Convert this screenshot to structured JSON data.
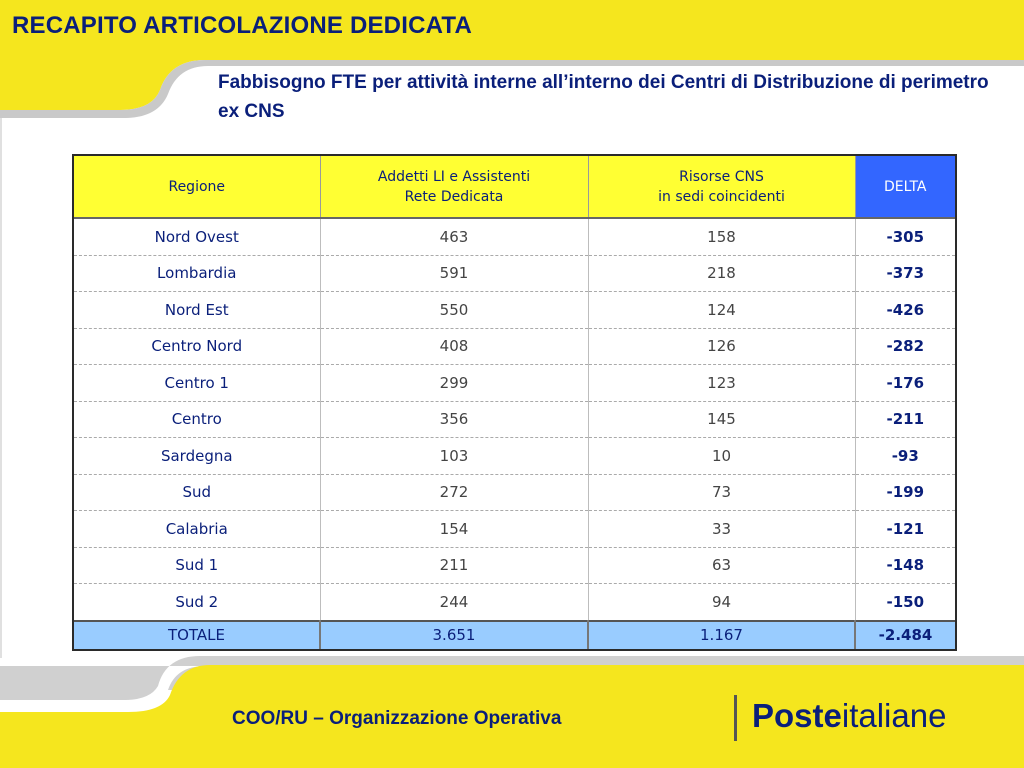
{
  "slide": {
    "title": "RECAPITO ARTICOLAZIONE DEDICATA",
    "subtitle": "Fabbisogno FTE per attività interne all’interno dei Centri di Distribuzione di perimetro ex CNS"
  },
  "table": {
    "headers": {
      "regione": "Regione",
      "addetti_line1": "Addetti LI e Assistenti",
      "addetti_line2": "Rete Dedicata",
      "risorse_line1": "Risorse CNS",
      "risorse_line2": "in sedi coincidenti",
      "delta": "DELTA"
    },
    "rows": [
      {
        "regione": "Nord Ovest",
        "addetti": "463",
        "risorse": "158",
        "delta": "-305"
      },
      {
        "regione": "Lombardia",
        "addetti": "591",
        "risorse": "218",
        "delta": "-373"
      },
      {
        "regione": "Nord Est",
        "addetti": "550",
        "risorse": "124",
        "delta": "-426"
      },
      {
        "regione": "Centro Nord",
        "addetti": "408",
        "risorse": "126",
        "delta": "-282"
      },
      {
        "regione": "Centro 1",
        "addetti": "299",
        "risorse": "123",
        "delta": "-176"
      },
      {
        "regione": "Centro",
        "addetti": "356",
        "risorse": "145",
        "delta": "-211"
      },
      {
        "regione": "Sardegna",
        "addetti": "103",
        "risorse": "10",
        "delta": "-93"
      },
      {
        "regione": "Sud",
        "addetti": "272",
        "risorse": "73",
        "delta": "-199"
      },
      {
        "regione": "Calabria",
        "addetti": "154",
        "risorse": "33",
        "delta": "-121"
      },
      {
        "regione": "Sud 1",
        "addetti": "211",
        "risorse": "63",
        "delta": "-148"
      },
      {
        "regione": "Sud 2",
        "addetti": "244",
        "risorse": "94",
        "delta": "-150"
      }
    ],
    "total": {
      "regione": "TOTALE",
      "addetti": "3.651",
      "risorse": "1.167",
      "delta": "-2.484"
    }
  },
  "footer": {
    "text": "COO/RU – Organizzazione Operativa",
    "logo_bold": "Poste",
    "logo_regular": "italiane"
  },
  "colors": {
    "brand_yellow": "#f5e61e",
    "brand_blue": "#0a1f7a",
    "header_yellow": "#ffff33",
    "delta_blue": "#3366ff",
    "total_blue": "#99ccff"
  }
}
